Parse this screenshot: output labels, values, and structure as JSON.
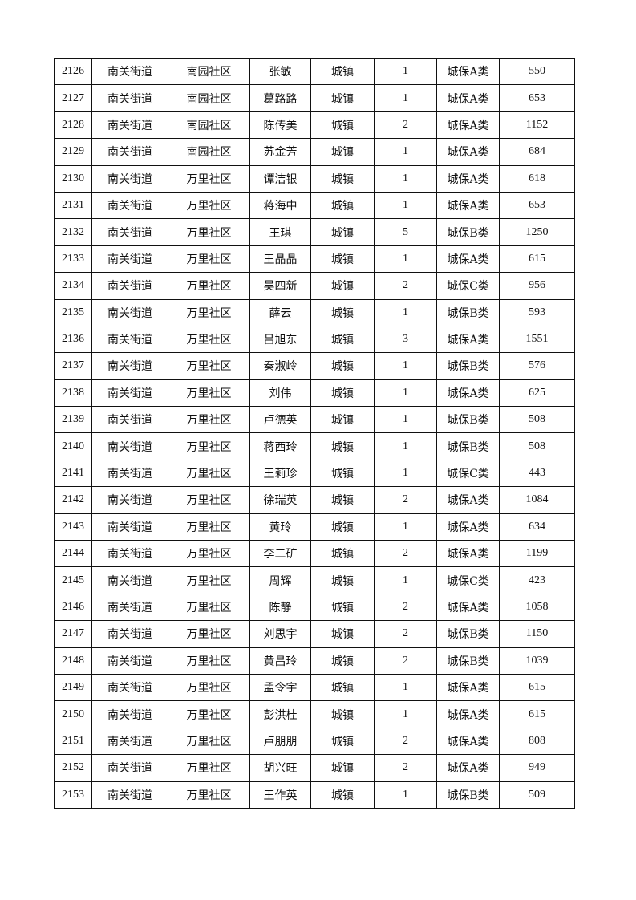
{
  "table": {
    "rows": [
      [
        "2126",
        "南关街道",
        "南园社区",
        "张敏",
        "城镇",
        "1",
        "城保A类",
        "550"
      ],
      [
        "2127",
        "南关街道",
        "南园社区",
        "葛路路",
        "城镇",
        "1",
        "城保A类",
        "653"
      ],
      [
        "2128",
        "南关街道",
        "南园社区",
        "陈传美",
        "城镇",
        "2",
        "城保A类",
        "1152"
      ],
      [
        "2129",
        "南关街道",
        "南园社区",
        "苏金芳",
        "城镇",
        "1",
        "城保A类",
        "684"
      ],
      [
        "2130",
        "南关街道",
        "万里社区",
        "谭洁银",
        "城镇",
        "1",
        "城保A类",
        "618"
      ],
      [
        "2131",
        "南关街道",
        "万里社区",
        "蒋海中",
        "城镇",
        "1",
        "城保A类",
        "653"
      ],
      [
        "2132",
        "南关街道",
        "万里社区",
        "王琪",
        "城镇",
        "5",
        "城保B类",
        "1250"
      ],
      [
        "2133",
        "南关街道",
        "万里社区",
        "王晶晶",
        "城镇",
        "1",
        "城保A类",
        "615"
      ],
      [
        "2134",
        "南关街道",
        "万里社区",
        "吴四新",
        "城镇",
        "2",
        "城保C类",
        "956"
      ],
      [
        "2135",
        "南关街道",
        "万里社区",
        "薛云",
        "城镇",
        "1",
        "城保B类",
        "593"
      ],
      [
        "2136",
        "南关街道",
        "万里社区",
        "吕旭东",
        "城镇",
        "3",
        "城保A类",
        "1551"
      ],
      [
        "2137",
        "南关街道",
        "万里社区",
        "秦淑岭",
        "城镇",
        "1",
        "城保B类",
        "576"
      ],
      [
        "2138",
        "南关街道",
        "万里社区",
        "刘伟",
        "城镇",
        "1",
        "城保A类",
        "625"
      ],
      [
        "2139",
        "南关街道",
        "万里社区",
        "卢德英",
        "城镇",
        "1",
        "城保B类",
        "508"
      ],
      [
        "2140",
        "南关街道",
        "万里社区",
        "蒋西玲",
        "城镇",
        "1",
        "城保B类",
        "508"
      ],
      [
        "2141",
        "南关街道",
        "万里社区",
        "王莉珍",
        "城镇",
        "1",
        "城保C类",
        "443"
      ],
      [
        "2142",
        "南关街道",
        "万里社区",
        "徐瑞英",
        "城镇",
        "2",
        "城保A类",
        "1084"
      ],
      [
        "2143",
        "南关街道",
        "万里社区",
        "黄玲",
        "城镇",
        "1",
        "城保A类",
        "634"
      ],
      [
        "2144",
        "南关街道",
        "万里社区",
        "李二矿",
        "城镇",
        "2",
        "城保A类",
        "1199"
      ],
      [
        "2145",
        "南关街道",
        "万里社区",
        "周辉",
        "城镇",
        "1",
        "城保C类",
        "423"
      ],
      [
        "2146",
        "南关街道",
        "万里社区",
        "陈静",
        "城镇",
        "2",
        "城保A类",
        "1058"
      ],
      [
        "2147",
        "南关街道",
        "万里社区",
        "刘思宇",
        "城镇",
        "2",
        "城保B类",
        "1150"
      ],
      [
        "2148",
        "南关街道",
        "万里社区",
        "黄昌玲",
        "城镇",
        "2",
        "城保B类",
        "1039"
      ],
      [
        "2149",
        "南关街道",
        "万里社区",
        "孟令宇",
        "城镇",
        "1",
        "城保A类",
        "615"
      ],
      [
        "2150",
        "南关街道",
        "万里社区",
        "彭洪桂",
        "城镇",
        "1",
        "城保A类",
        "615"
      ],
      [
        "2151",
        "南关街道",
        "万里社区",
        "卢朋朋",
        "城镇",
        "2",
        "城保A类",
        "808"
      ],
      [
        "2152",
        "南关街道",
        "万里社区",
        "胡兴旺",
        "城镇",
        "2",
        "城保A类",
        "949"
      ],
      [
        "2153",
        "南关街道",
        "万里社区",
        "王作英",
        "城镇",
        "1",
        "城保B类",
        "509"
      ]
    ]
  }
}
